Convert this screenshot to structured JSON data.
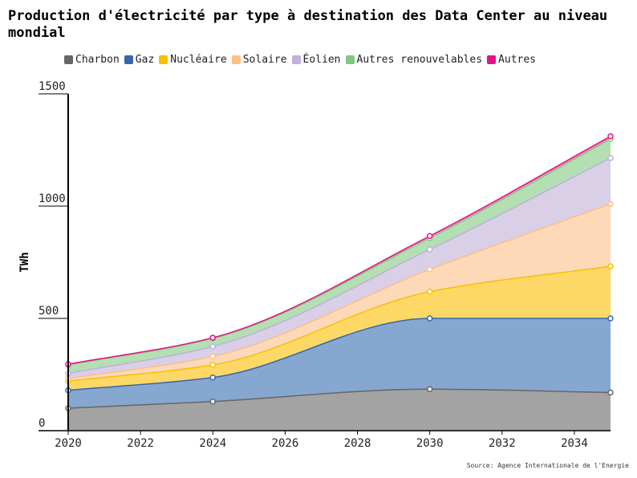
{
  "chart_data": {
    "type": "area",
    "stacked": true,
    "title": "Production d'électricité par type à destination des Data Center au niveau mondial",
    "xlabel": "",
    "ylabel": "TWh",
    "x": [
      2020,
      2024,
      2030,
      2035
    ],
    "xlim": [
      2020,
      2035
    ],
    "ylim": [
      0,
      1500
    ],
    "xticks": [
      "2020",
      "2022",
      "2024",
      "2026",
      "2028",
      "2030",
      "2032",
      "2034"
    ],
    "yticks": [
      "0",
      "500",
      "1000",
      "1500"
    ],
    "legend_position": "top",
    "series": [
      {
        "name": "Charbon",
        "values": [
          100,
          130,
          185,
          170
        ],
        "color": "#666666",
        "fill": "#a3a3a3"
      },
      {
        "name": "Gaz",
        "values": [
          80,
          107,
          315,
          330
        ],
        "color": "#3766ab",
        "fill": "#86a7d0"
      },
      {
        "name": "Nucléaire",
        "values": [
          41,
          56,
          119,
          232
        ],
        "color": "#f7c000",
        "fill": "#fdd867"
      },
      {
        "name": "Solaire",
        "values": [
          11,
          38,
          99,
          278
        ],
        "color": "#fdbf84",
        "fill": "#fdd9b8"
      },
      {
        "name": "Éolien",
        "values": [
          23,
          44,
          89,
          204
        ],
        "color": "#bfb0dc",
        "fill": "#d9cfe7"
      },
      {
        "name": "Autres renouvelables",
        "values": [
          38,
          36,
          51,
          85
        ],
        "color": "#80c980",
        "fill": "#b3dfb3"
      },
      {
        "name": "Autres",
        "values": [
          3,
          3,
          9,
          12
        ],
        "color": "#e8118b",
        "fill": "#f38cc4"
      }
    ],
    "source": "Source: Agence Internationale de l'Energie"
  }
}
